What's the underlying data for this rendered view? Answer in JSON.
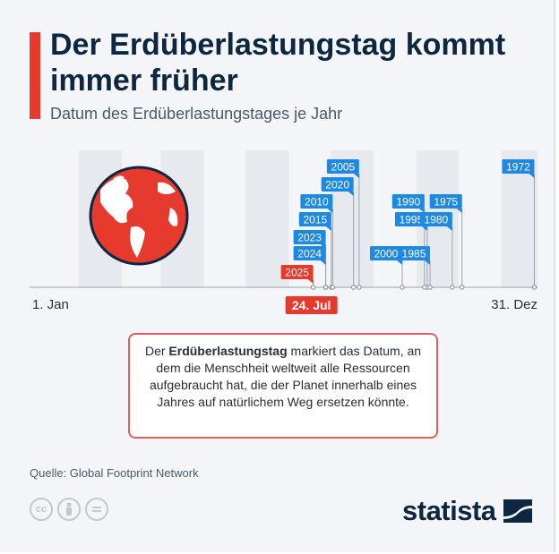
{
  "header": {
    "title": "Der Erdüberlastungstag kommt immer früher",
    "subtitle": "Datum des Erdüberlastungstages je Jahr"
  },
  "chart_data": {
    "type": "timeline",
    "x_start_label": "1. Jan",
    "x_end_label": "31. Dez",
    "x_range_day_of_year": [
      1,
      365
    ],
    "highlight": {
      "year": "2025",
      "date_label": "24. Jul",
      "day_of_year": 205
    },
    "events": [
      {
        "year": "2025",
        "day_of_year": 205,
        "date": "24. Jul"
      },
      {
        "year": "2024",
        "day_of_year": 214
      },
      {
        "year": "2023",
        "day_of_year": 214
      },
      {
        "year": "2015",
        "day_of_year": 218
      },
      {
        "year": "2010",
        "day_of_year": 219
      },
      {
        "year": "2020",
        "day_of_year": 234
      },
      {
        "year": "2005",
        "day_of_year": 238
      },
      {
        "year": "2000",
        "day_of_year": 269
      },
      {
        "year": "1995",
        "day_of_year": 287
      },
      {
        "year": "1990",
        "day_of_year": 285
      },
      {
        "year": "1985",
        "day_of_year": 289
      },
      {
        "year": "1980",
        "day_of_year": 305
      },
      {
        "year": "1975",
        "day_of_year": 312
      },
      {
        "year": "1972",
        "day_of_year": 364
      }
    ],
    "month_bands": "alternating"
  },
  "info": {
    "bold": "Erdüberlastungstag",
    "before": "Der ",
    "after": " markiert das Datum, an dem die Menschheit weltweit alle Ressourcen aufgebraucht hat, die der Planet innerhalb eines Jahres auf natürlichem Weg ersetzen könnte."
  },
  "footer": {
    "source": "Quelle: Global Footprint Network",
    "brand": "statista",
    "license_icons": [
      "cc-icon",
      "by-icon",
      "nd-icon"
    ]
  },
  "colors": {
    "accent": "#e63a2e",
    "label_blue": "#1e88e5",
    "highlight_red": "#e63a2e",
    "title": "#0d2740"
  }
}
